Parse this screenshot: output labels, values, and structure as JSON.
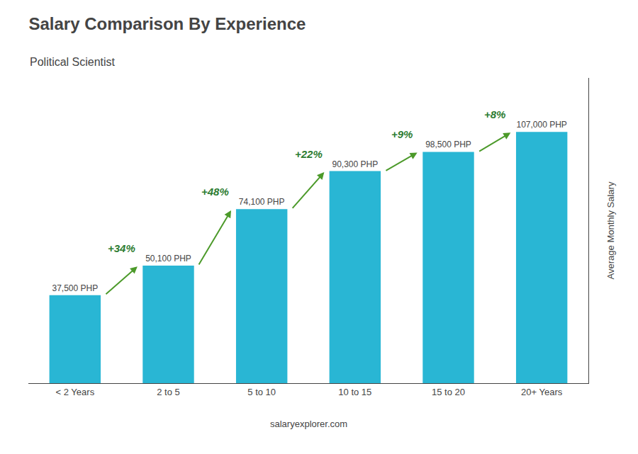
{
  "chart_data": {
    "type": "bar",
    "title": "Salary Comparison By Experience",
    "subtitle": "Political Scientist",
    "categories": [
      "< 2 Years",
      "2 to 5",
      "5 to 10",
      "10 to 15",
      "15 to 20",
      "20+ Years"
    ],
    "values": [
      37500,
      50100,
      74100,
      90300,
      98500,
      107000
    ],
    "value_labels": [
      "37,500 PHP",
      "50,100 PHP",
      "74,100 PHP",
      "90,300 PHP",
      "98,500 PHP",
      "107,000 PHP"
    ],
    "data_labels": true,
    "annotations": [
      "+34%",
      "+48%",
      "+22%",
      "+9%",
      "+8%"
    ],
    "color": "#29b6d4",
    "ylabel": "Average Monthly Salary",
    "footer": "salaryexplorer.com",
    "ylim": [
      0,
      130000
    ],
    "tick_labels": "x",
    "grid": false
  }
}
